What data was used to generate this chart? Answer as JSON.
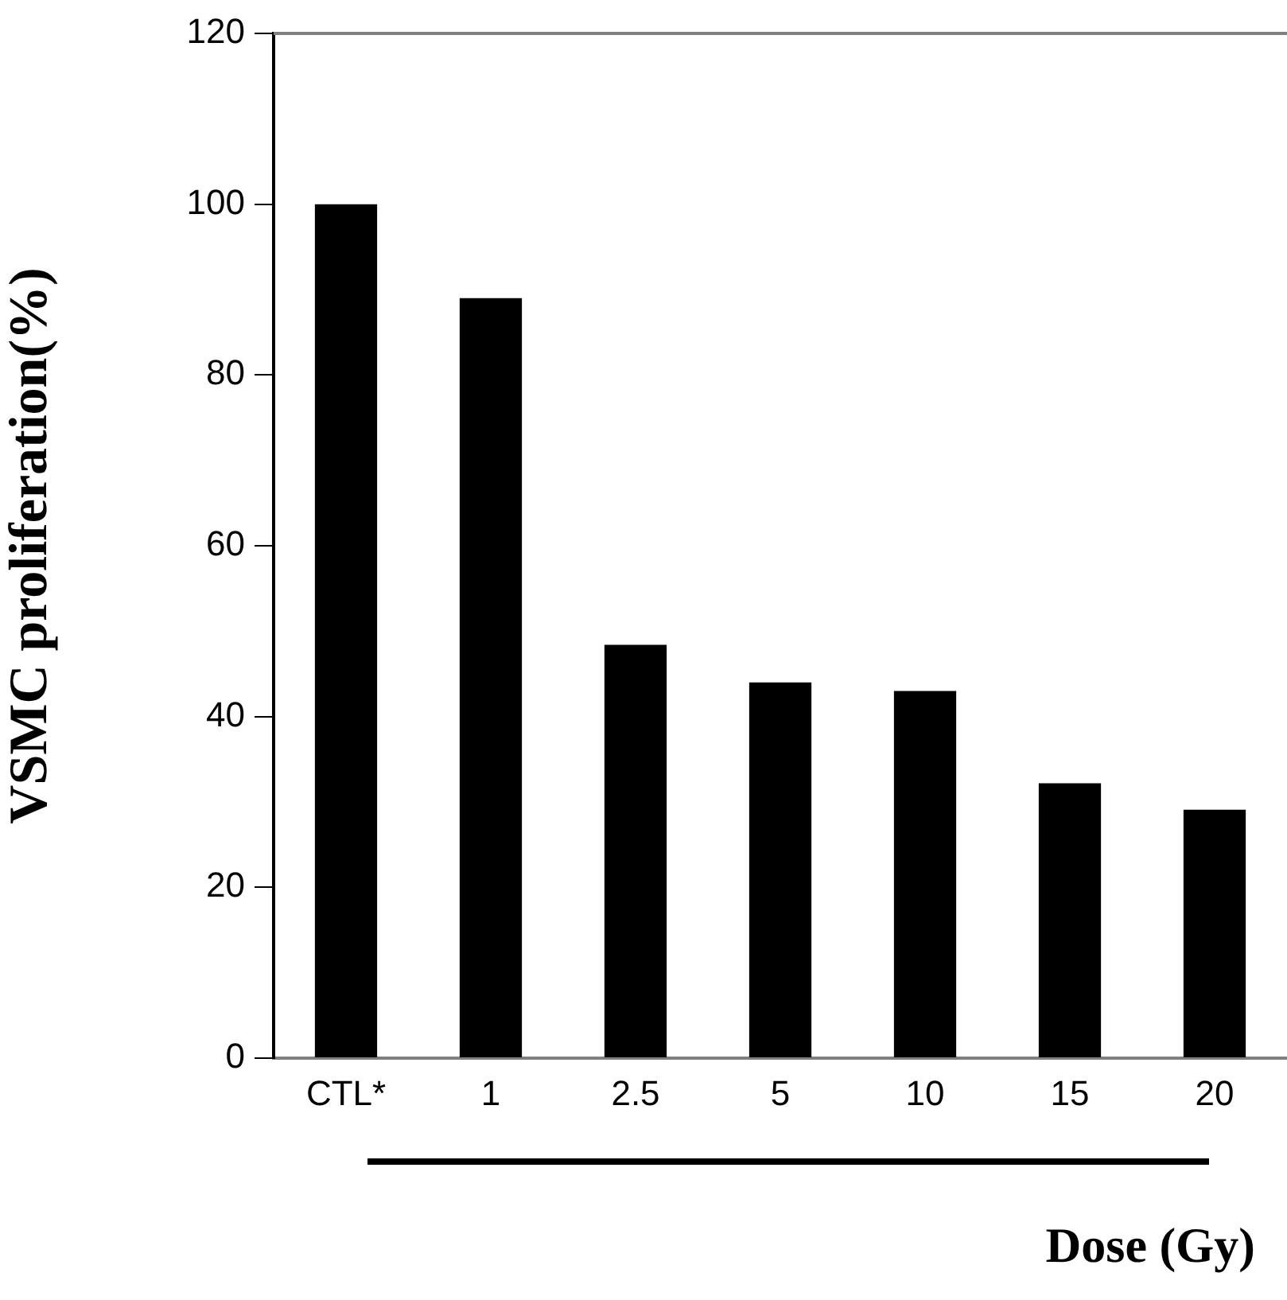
{
  "chart_data": {
    "type": "bar",
    "xlabel": "Dose (Gy)",
    "ylabel": "VSMC proliferation(%)",
    "categories": [
      "CTL*",
      "1",
      "2.5",
      "5",
      "10",
      "15",
      "20"
    ],
    "values": [
      100,
      89,
      48.4,
      44,
      43,
      32.2,
      29.1
    ],
    "color": "#000000",
    "ylim": [
      0,
      120
    ],
    "yticks": [
      0,
      20,
      40,
      60,
      80,
      100,
      120
    ],
    "grid": false,
    "legend": false
  }
}
